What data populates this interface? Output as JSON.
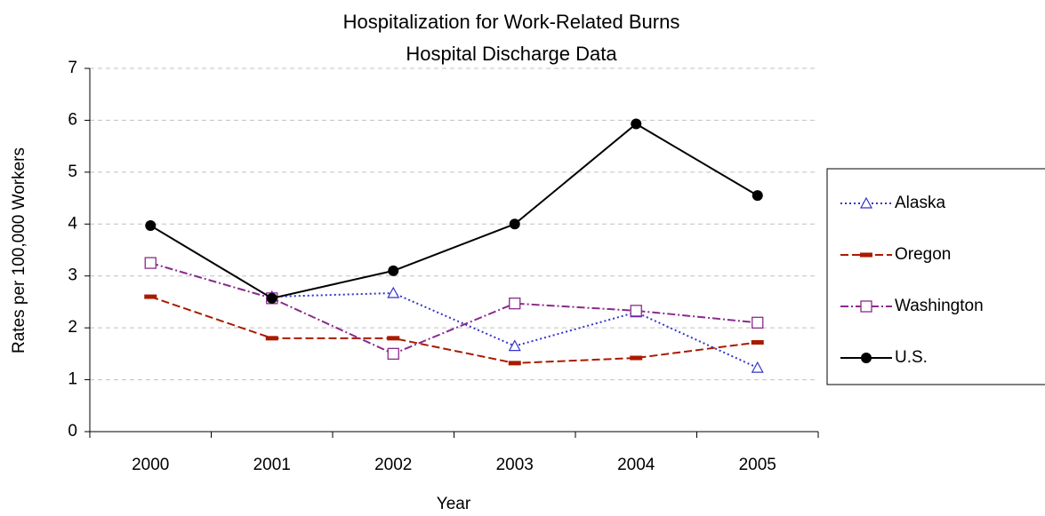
{
  "chart_data": {
    "type": "line",
    "title": "Hospitalization for Work-Related Burns",
    "subtitle": "Hospital Discharge Data",
    "x_label": "Year",
    "y_label": "Rates per 100,000 Workers",
    "categories": [
      "2000",
      "2001",
      "2002",
      "2003",
      "2004",
      "2005"
    ],
    "series": [
      {
        "name": "Alaska",
        "color": "#3333cc",
        "dash": "2,3",
        "marker": "triangle",
        "values": [
          null,
          2.6,
          2.67,
          1.65,
          2.3,
          1.23
        ]
      },
      {
        "name": "Oregon",
        "color": "#aa1a00",
        "dash": "9,4",
        "marker": "bar",
        "values": [
          2.6,
          1.8,
          1.8,
          1.32,
          1.42,
          1.72
        ]
      },
      {
        "name": "Washington",
        "color": "#8b2a8b",
        "dash": "9,3,2,3",
        "marker": "square",
        "values": [
          3.25,
          2.57,
          1.5,
          2.47,
          2.33,
          2.1
        ]
      },
      {
        "name": "U.S.",
        "color": "#000000",
        "dash": "none",
        "marker": "circle",
        "values": [
          3.97,
          2.57,
          3.1,
          4.0,
          5.93,
          4.55
        ]
      }
    ],
    "ylim": [
      0,
      7
    ],
    "yticks": [
      0,
      1,
      2,
      3,
      4,
      5,
      6,
      7
    ],
    "grid": true,
    "legend": "right"
  }
}
